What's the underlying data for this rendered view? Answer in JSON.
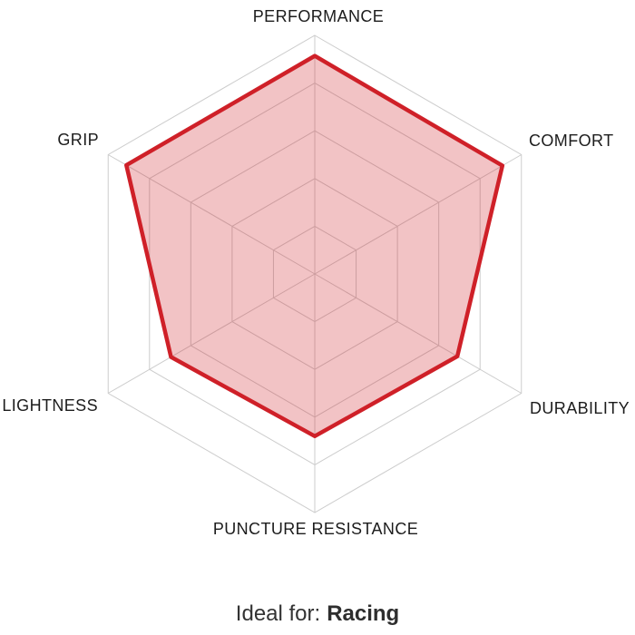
{
  "chart_data": {
    "type": "radar",
    "title": "",
    "categories": [
      "PERFORMANCE",
      "COMFORT",
      "DURABILITY",
      "PUNCTURE RESISTANCE",
      "LIGHTNESS",
      "GRIP"
    ],
    "series": [
      {
        "name": "tire_attribute_profile",
        "values": [
          4.57,
          4.54,
          3.45,
          3.4,
          3.48,
          4.56
        ]
      }
    ],
    "scale": {
      "min": 0,
      "max": 5,
      "rings": 5
    },
    "grid": true,
    "legend": false,
    "colors": {
      "series_line": "#cf2028",
      "series_fill": "rgba(207,32,40,0.27)",
      "grid_line": "#cccccc",
      "label_text": "#1c1c1c"
    }
  },
  "footer": {
    "prefix": "Ideal for:",
    "value": "Racing"
  }
}
